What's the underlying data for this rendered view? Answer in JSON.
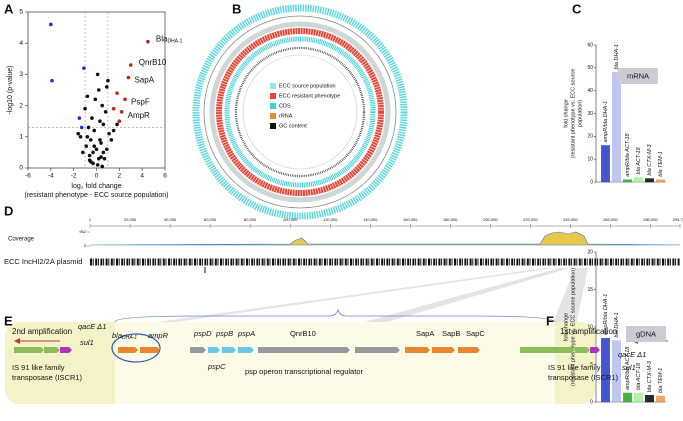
{
  "panel_labels": [
    "A",
    "B",
    "C",
    "D",
    "E",
    "F"
  ],
  "chart_data": [
    {
      "type": "scatter",
      "xlabel": "log₂ fold change",
      "xlabel_note": "(resistant phenotype - ECC source population)",
      "ylabel": "-log10 (p-value)",
      "xlim": [
        -6,
        6
      ],
      "xticks": [
        -6,
        -4,
        -2,
        0,
        2,
        4,
        6
      ],
      "ylim": [
        0,
        5
      ],
      "yticks": [
        0,
        1,
        2,
        3,
        4,
        5
      ],
      "thresholds": {
        "x": [
          -1,
          1
        ],
        "y": 1.3
      },
      "series": [
        {
          "color": "#111111",
          "x": [
            -0.5,
            -0.3,
            0.2,
            0.4,
            -0.8,
            0.9,
            -0.2,
            0.1,
            0.6,
            -0.6,
            0.3,
            -0.4,
            0.7,
            -0.9,
            1.1,
            -1.2,
            0.5,
            -0.1,
            0.0,
            0.8,
            -0.7,
            1.3,
            -1.4,
            0.2,
            -0.3,
            0.4,
            -0.5,
            0.6,
            1.0,
            -1.0,
            0.3,
            -0.2,
            1.5,
            -0.8,
            0.1,
            0.9,
            -0.6,
            1.8,
            -1.6,
            0.5
          ],
          "values": [
            0.2,
            0.5,
            0.3,
            0.8,
            1.0,
            0.6,
            1.2,
            0.1,
            1.4,
            0.4,
            0.9,
            1.6,
            0.3,
            0.7,
            1.1,
            0.5,
            2.0,
            2.2,
            0.6,
            1.8,
            1.3,
            0.9,
            1.0,
            2.5,
            0.15,
            0.35,
            0.9,
            0.5,
            2.8,
            1.9,
            1.5,
            0.7,
            1.2,
            2.3,
            3.0,
            2.6,
            0.25,
            1.4,
            1.1,
            0.05
          ]
        },
        {
          "color": "#2233cc",
          "x": [
            -4,
            -3.9,
            -1.1,
            -1.5,
            -1.3
          ],
          "values": [
            4.6,
            2.8,
            3.2,
            1.6,
            1.3
          ]
        },
        {
          "color": "#cc2211",
          "x": [
            4.5,
            3,
            2.8,
            2.5,
            2.2,
            1.8,
            1.5,
            2.0
          ],
          "values": [
            4.05,
            3.3,
            2.9,
            2.2,
            1.8,
            2.4,
            1.9,
            1.5
          ]
        }
      ],
      "annotations": [
        {
          "text": "Bla",
          "sub": "DHA-1"
        },
        {
          "text": "QnrB10"
        },
        {
          "text": "SapA"
        },
        {
          "text": "PspF"
        },
        {
          "text": "AmpR"
        }
      ]
    },
    {
      "type": "bar",
      "box_label": "mRNA",
      "ylabel": [
        "fold change",
        "(resistant phenotype vs. ECC source",
        "population)"
      ],
      "categories": [
        "ampR/bla DHA-1",
        "bla DHA-1",
        "ampR/bla ACT-18",
        "bla ACT-18",
        "bla CTX-M-3",
        "bla TEM-1"
      ],
      "values": [
        16,
        48,
        1,
        2,
        1.5,
        1
      ],
      "colors": [
        "#3344cc",
        "#aab4f0",
        "#33aa33",
        "#99ee88",
        "#111111",
        "#ee8833"
      ],
      "ylim": [
        0,
        60
      ],
      "yticks": [
        0,
        10,
        20,
        30,
        40,
        50,
        60
      ]
    },
    {
      "type": "bar",
      "box_label": "gDNA",
      "ylabel": [
        "fold change",
        "(resistant phenotype vs. ECC source population)"
      ],
      "categories": [
        "ampR/bla DHA-1",
        "bla DHA-1",
        "ampR/bla ACT-18",
        "bla ACT-18",
        "bla CTX-M-3",
        "bla TEM-1"
      ],
      "values": [
        8.5,
        8.2,
        1.2,
        1.2,
        0.9,
        0.8
      ],
      "colors": [
        "#3344cc",
        "#aab4f0",
        "#33aa33",
        "#99ee88",
        "#111111",
        "#ee8833"
      ],
      "ylim": [
        0,
        20
      ],
      "yticks": [
        0,
        5,
        10,
        15,
        20
      ]
    }
  ],
  "circos": {
    "legend": [
      {
        "label": "ECC source population",
        "color": "#9fe3e0"
      },
      {
        "label": "ECC resistant phenotype",
        "color": "#e8483a"
      },
      {
        "label": "CDS",
        "color": "#40d0d8"
      },
      {
        "label": "rRNA",
        "color": "#f08a30"
      },
      {
        "label": "GC content",
        "color": "#111111"
      }
    ]
  },
  "coverage": {
    "track_label": "Coverage",
    "plasmid_label": "ECC IncHI2/2A plasmid",
    "xlim": [
      1,
      294746
    ],
    "xticks": [
      1,
      {
        "value": 20000,
        "label": "20,000"
      },
      {
        "value": 40000,
        "label": "40,000"
      },
      {
        "value": 60000,
        "label": "60,000"
      },
      {
        "value": 80000,
        "label": "80,000"
      },
      {
        "value": 100000,
        "label": "100,000"
      },
      {
        "value": 120000,
        "label": "120,000"
      },
      {
        "value": 140000,
        "label": "140,000"
      },
      {
        "value": 160000,
        "label": "160,000"
      },
      {
        "value": 180000,
        "label": "180,000"
      },
      {
        "value": 200000,
        "label": "200,000"
      },
      {
        "value": 220000,
        "label": "220,000"
      },
      {
        "value": 240000,
        "label": "240,000"
      },
      {
        "value": 260000,
        "label": "260,000"
      },
      {
        "value": 280000,
        "label": "280,000"
      },
      {
        "value": 294746,
        "label": "294,746"
      }
    ],
    "ylim": [
      0,
      962
    ],
    "yticks": [
      0,
      962
    ]
  },
  "operon": {
    "left_title": "2nd amplification",
    "right_title": "1st amplification",
    "genes": [
      {
        "text": "qacE Δ1"
      },
      {
        "text": "sul1"
      },
      {
        "lines": [
          "IS 91 like family",
          "transposase (ISCR1)"
        ]
      },
      {
        "text": "bla",
        "sub": "DHA-1"
      },
      {
        "text": "ampR"
      },
      {
        "text": "pspD"
      },
      {
        "text": "pspB"
      },
      {
        "text": "pspA"
      },
      {
        "text": "pspC"
      },
      {
        "text": "psp operon transcriptional regulator"
      },
      {
        "text": "QnrB10"
      },
      {
        "text": "SapA"
      },
      {
        "text": "SapB"
      },
      {
        "text": "SapC"
      },
      {
        "text": "qacE Δ1"
      },
      {
        "text": "sul1"
      },
      {
        "lines": [
          "IS 91 like family",
          "transposase (ISCR1)"
        ]
      }
    ]
  }
}
